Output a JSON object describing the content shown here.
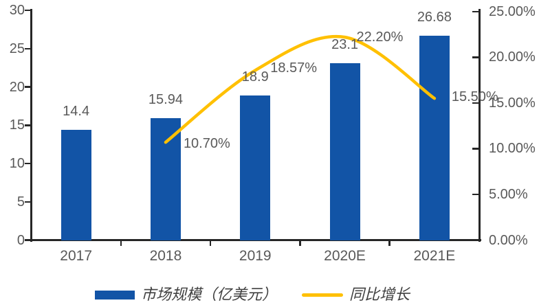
{
  "chart_data": {
    "type": "combo-bar-line",
    "title": "",
    "categories": [
      "2017",
      "2018",
      "2019",
      "2020E",
      "2021E"
    ],
    "series": [
      {
        "name": "市场规模（亿美元）",
        "type": "bar",
        "axis": "left",
        "color": "#1254A6",
        "values": [
          14.4,
          15.94,
          18.9,
          23.1,
          26.68
        ],
        "labels": [
          "14.4",
          "15.94",
          "18.9",
          "23.1",
          "26.68"
        ]
      },
      {
        "name": "同比增长",
        "type": "line",
        "axis": "right",
        "color": "#FFC000",
        "smooth": true,
        "values": [
          null,
          10.7,
          18.57,
          22.2,
          15.5
        ],
        "labels": [
          null,
          "10.70%",
          "18.57%",
          "22.20%",
          "15.50%"
        ]
      }
    ],
    "left_axis": {
      "min": 0,
      "max": 30,
      "step": 5,
      "ticks": [
        "30",
        "25",
        "20",
        "15",
        "10",
        "5",
        "0"
      ]
    },
    "right_axis": {
      "min": 0,
      "max": 25,
      "step": 5,
      "ticks": [
        "25.00%",
        "20.00%",
        "15.00%",
        "10.00%",
        "5.00%",
        "0.00%"
      ]
    },
    "legend": [
      {
        "label": "市场规模（亿美元）",
        "swatch": "bar",
        "color": "#1254A6"
      },
      {
        "label": "同比增长",
        "swatch": "line",
        "color": "#FFC000"
      }
    ],
    "grid": false,
    "legend_position": "bottom",
    "colors": {
      "axis": "#262626",
      "tick_text": "#595959"
    }
  }
}
